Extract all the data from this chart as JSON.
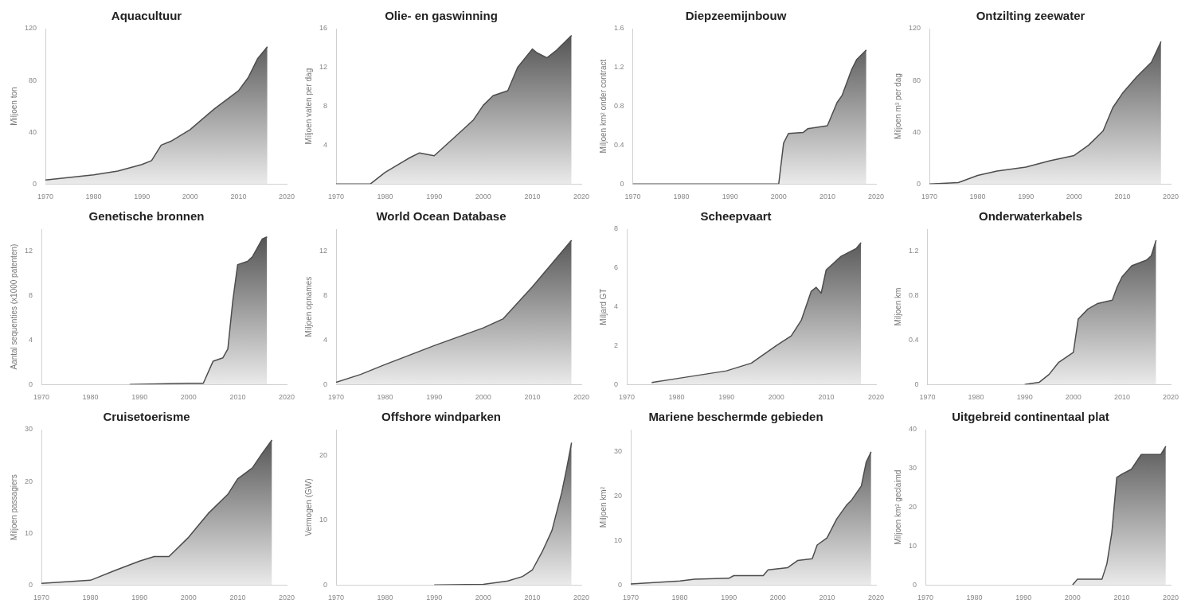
{
  "chart_data": [
    {
      "type": "area",
      "title": "Aquacultuur",
      "ylabel": "Miljoen ton",
      "color": "#4d4d4d",
      "x": [
        1970,
        1975,
        1980,
        1985,
        1990,
        1992,
        1994,
        1996,
        2000,
        2005,
        2010,
        2012,
        2014,
        2016
      ],
      "values": [
        3,
        5,
        7,
        10,
        15,
        18,
        30,
        33,
        42,
        58,
        72,
        82,
        97,
        106
      ],
      "xlim": [
        1970,
        2020
      ],
      "xticks": [
        1970,
        1980,
        1990,
        2000,
        2010,
        2020
      ],
      "ylim": [
        0,
        120
      ],
      "yticks": [
        0,
        40,
        80,
        120
      ],
      "grid": false
    },
    {
      "type": "area",
      "title": "Olie- en gaswinning",
      "ylabel": "Miljoen vaten per dag",
      "color": "#4d4d4d",
      "x": [
        1970,
        1977,
        1980,
        1985,
        1987,
        1990,
        1995,
        1998,
        2000,
        2002,
        2005,
        2007,
        2010,
        2011,
        2013,
        2015,
        2018
      ],
      "values": [
        0,
        0,
        1.2,
        2.7,
        3.2,
        2.9,
        5.2,
        6.6,
        8.1,
        9.1,
        9.6,
        12,
        13.9,
        13.5,
        13,
        13.8,
        15.3
      ],
      "xlim": [
        1970,
        2020
      ],
      "xticks": [
        1970,
        1980,
        1990,
        2000,
        2010,
        2020
      ],
      "ylim": [
        0,
        16
      ],
      "yticks": [
        4,
        8,
        12,
        16
      ],
      "grid": false
    },
    {
      "type": "area",
      "title": "Diepzeemijnbouw",
      "ylabel": "Miljoen km² onder contract",
      "color": "#4d4d4d",
      "x": [
        1970,
        2000,
        2001,
        2002,
        2005,
        2006,
        2010,
        2012,
        2013,
        2015,
        2016,
        2018
      ],
      "values": [
        0,
        0,
        0.42,
        0.52,
        0.53,
        0.57,
        0.6,
        0.84,
        0.91,
        1.18,
        1.28,
        1.38
      ],
      "xlim": [
        1970,
        2020
      ],
      "xticks": [
        1970,
        1980,
        1990,
        2000,
        2010,
        2020
      ],
      "ylim": [
        0,
        1.6
      ],
      "yticks": [
        0,
        0.4,
        0.8,
        1.2,
        1.6
      ],
      "grid": false
    },
    {
      "type": "area",
      "title": "Ontzilting zeewater",
      "ylabel": "Miljoen m³ per dag",
      "color": "#4d4d4d",
      "x": [
        1970,
        1976,
        1980,
        1984,
        1990,
        1995,
        2000,
        2003,
        2006,
        2008,
        2010,
        2013,
        2016,
        2018
      ],
      "values": [
        0,
        1,
        6.6,
        10,
        13,
        18,
        22,
        30,
        41,
        59,
        70,
        83,
        94,
        110
      ],
      "xlim": [
        1970,
        2020
      ],
      "xticks": [
        1970,
        1980,
        1990,
        2000,
        2010,
        2020
      ],
      "ylim": [
        0,
        120
      ],
      "yticks": [
        0,
        40,
        80,
        120
      ],
      "grid": false
    },
    {
      "type": "area",
      "title": "Genetische bronnen",
      "ylabel": "Aantal sequenties (x1000 patenten)",
      "color": "#4d4d4d",
      "x": [
        1988,
        2000,
        2003,
        2005,
        2007,
        2008,
        2009,
        2010,
        2012,
        2013,
        2015,
        2016
      ],
      "values": [
        0,
        0.1,
        0.1,
        2.1,
        2.4,
        3.2,
        7.5,
        10.8,
        11.1,
        11.5,
        13.1,
        13.3
      ],
      "xlim": [
        1970,
        2020
      ],
      "xticks": [
        1970,
        1980,
        1990,
        2000,
        2010,
        2020
      ],
      "ylim": [
        0,
        14
      ],
      "yticks": [
        0,
        4,
        8,
        12
      ],
      "grid": false
    },
    {
      "type": "area",
      "title": "World Ocean Database",
      "ylabel": "Miljoen opnames",
      "color": "#4d4d4d",
      "x": [
        1970,
        1975,
        1980,
        1990,
        2000,
        2004,
        2010,
        2018
      ],
      "values": [
        0.2,
        0.9,
        1.8,
        3.5,
        5.1,
        5.9,
        8.8,
        13
      ],
      "xlim": [
        1970,
        2020
      ],
      "xticks": [
        1970,
        1980,
        1990,
        2000,
        2010,
        2020
      ],
      "ylim": [
        0,
        14
      ],
      "yticks": [
        0,
        4,
        8,
        12
      ],
      "grid": false
    },
    {
      "type": "area",
      "title": "Scheepvaart",
      "ylabel": "Miljard GT",
      "color": "#4d4d4d",
      "x": [
        1975,
        1980,
        1990,
        1995,
        2000,
        2003,
        2005,
        2007,
        2008,
        2009,
        2010,
        2013,
        2016,
        2017
      ],
      "values": [
        0.1,
        0.3,
        0.7,
        1.1,
        2,
        2.5,
        3.3,
        4.8,
        5,
        4.7,
        5.9,
        6.6,
        7,
        7.3
      ],
      "xlim": [
        1970,
        2020
      ],
      "xticks": [
        1970,
        1980,
        1990,
        2000,
        2010,
        2020
      ],
      "ylim": [
        0,
        8
      ],
      "yticks": [
        0,
        2,
        4,
        6,
        8
      ],
      "grid": false
    },
    {
      "type": "area",
      "title": "Onderwaterkabels",
      "ylabel": "Miljoen km",
      "color": "#4d4d4d",
      "x": [
        1990,
        1993,
        1995,
        1997,
        2000,
        2001,
        2003,
        2005,
        2008,
        2009,
        2010,
        2012,
        2015,
        2016,
        2017
      ],
      "values": [
        0,
        0.02,
        0.09,
        0.2,
        0.29,
        0.59,
        0.68,
        0.73,
        0.76,
        0.88,
        0.97,
        1.07,
        1.12,
        1.16,
        1.3
      ],
      "xlim": [
        1970,
        2020
      ],
      "xticks": [
        1970,
        1980,
        1990,
        2000,
        2010,
        2020
      ],
      "ylim": [
        0,
        1.4
      ],
      "yticks": [
        0,
        0.4,
        0.8,
        1.2
      ],
      "grid": false
    },
    {
      "type": "area",
      "title": "Cruisetoerisme",
      "ylabel": "Miljoen passagiers",
      "color": "#4d4d4d",
      "x": [
        1970,
        1980,
        1985,
        1990,
        1993,
        1996,
        2000,
        2004,
        2008,
        2010,
        2013,
        2015,
        2017
      ],
      "values": [
        0.3,
        0.9,
        2.8,
        4.6,
        5.5,
        5.5,
        9.2,
        13.8,
        17.5,
        20.5,
        22.6,
        25.4,
        28
      ],
      "xlim": [
        1970,
        2020
      ],
      "xticks": [
        1970,
        1980,
        1990,
        2000,
        2010,
        2020
      ],
      "ylim": [
        0,
        30
      ],
      "yticks": [
        0,
        10,
        20,
        30
      ],
      "grid": false
    },
    {
      "type": "area",
      "title": "Offshore windparken",
      "ylabel": "Vermogen (GW)",
      "color": "#4d4d4d",
      "x": [
        1990,
        2000,
        2005,
        2008,
        2010,
        2012,
        2014,
        2016,
        2017,
        2018
      ],
      "values": [
        0,
        0.1,
        0.6,
        1.3,
        2.3,
        5.1,
        8.4,
        14.3,
        18,
        22
      ],
      "xlim": [
        1970,
        2020
      ],
      "xticks": [
        1970,
        1980,
        1990,
        2000,
        2010,
        2020
      ],
      "ylim": [
        0,
        24
      ],
      "yticks": [
        0,
        10,
        20
      ],
      "grid": false
    },
    {
      "type": "area",
      "title": "Mariene beschermde gebieden",
      "ylabel": "Miljoen km²",
      "color": "#4d4d4d",
      "x": [
        1970,
        1980,
        1983,
        1990,
        1991,
        1997,
        1998,
        2002,
        2004,
        2007,
        2008,
        2010,
        2012,
        2014,
        2015,
        2017,
        2018,
        2019
      ],
      "values": [
        0.2,
        0.9,
        1.3,
        1.5,
        2.1,
        2.1,
        3.4,
        3.9,
        5.5,
        5.9,
        9,
        10.6,
        14.9,
        18,
        19.1,
        22.3,
        27.7,
        30
      ],
      "xlim": [
        1970,
        2020
      ],
      "xticks": [
        1970,
        1980,
        1990,
        2000,
        2010,
        2020
      ],
      "ylim": [
        0,
        35
      ],
      "yticks": [
        0,
        10,
        20,
        30
      ],
      "grid": false
    },
    {
      "type": "area",
      "title": "Uitgebreid continentaal plat",
      "ylabel": "Miljoen km² geclaimd",
      "color": "#4d4d4d",
      "x": [
        2000,
        2001,
        2006,
        2007,
        2008,
        2009,
        2010,
        2012,
        2014,
        2018,
        2019
      ],
      "values": [
        0,
        1.5,
        1.5,
        5.5,
        13.5,
        27.7,
        28.5,
        29.8,
        33.6,
        33.6,
        35.7
      ],
      "xlim": [
        1970,
        2020
      ],
      "xticks": [
        1970,
        1980,
        1990,
        2000,
        2010,
        2020
      ],
      "ylim": [
        0,
        40
      ],
      "yticks": [
        0,
        10,
        20,
        30,
        40
      ],
      "grid": false
    }
  ]
}
